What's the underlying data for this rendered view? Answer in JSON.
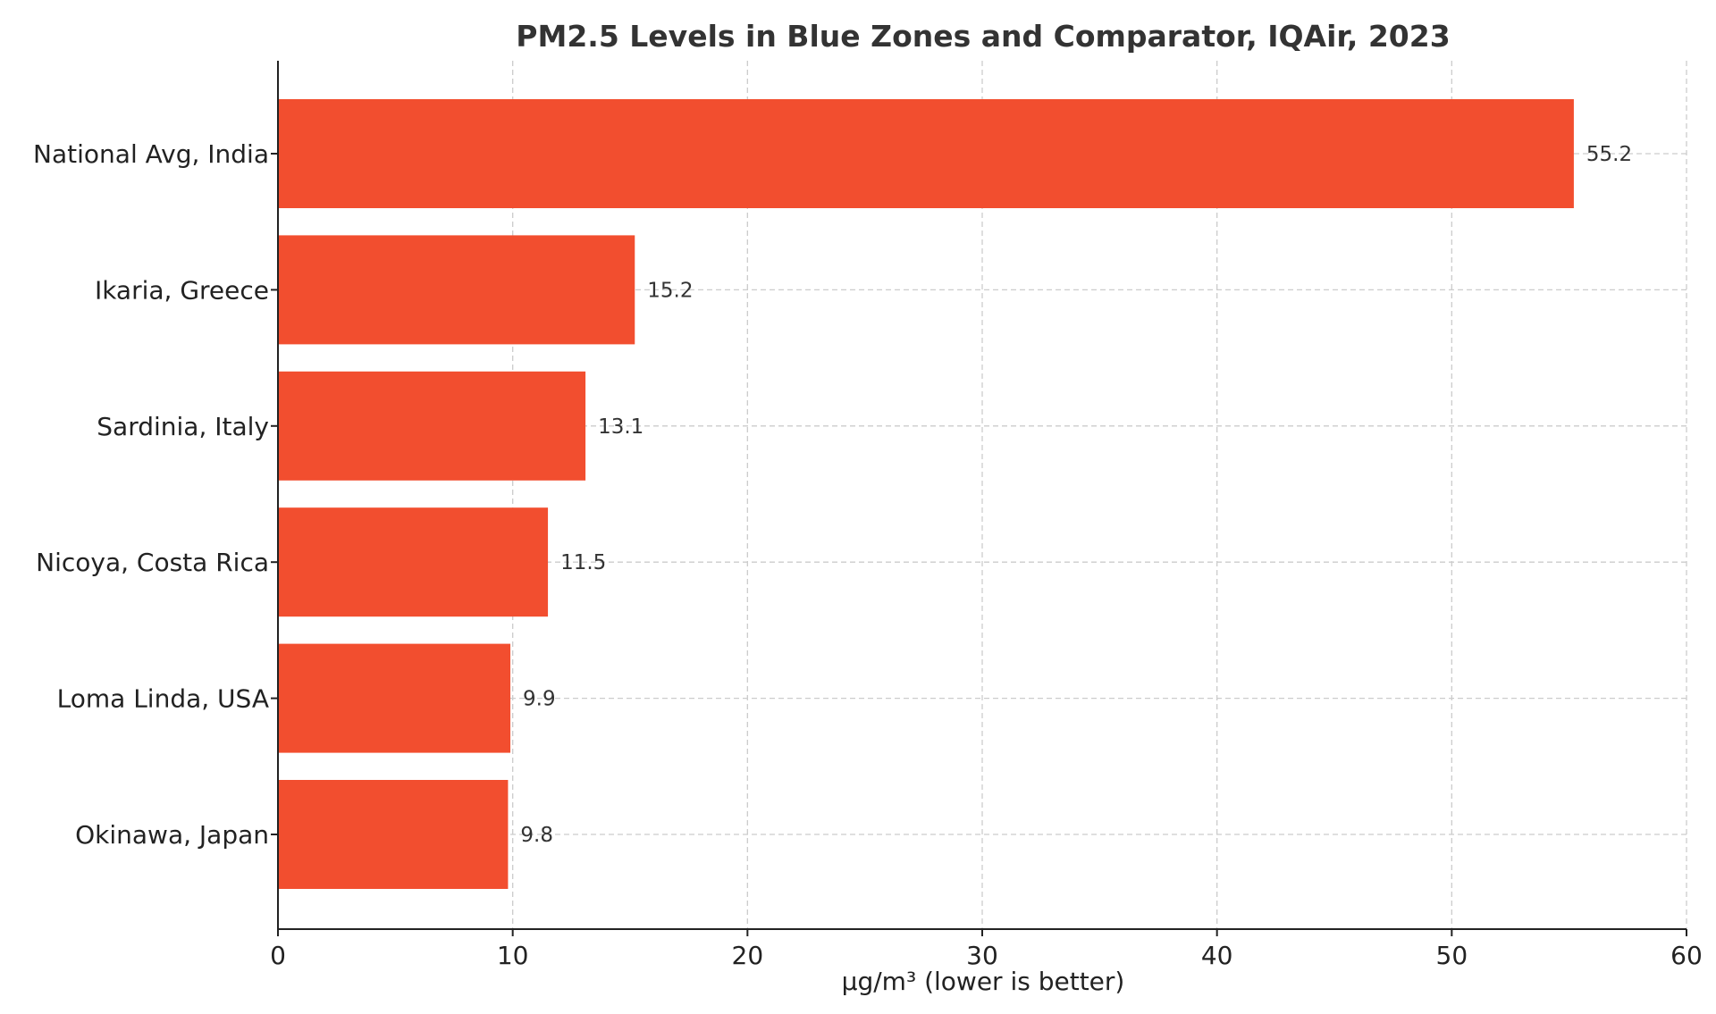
{
  "chart_data": {
    "type": "bar",
    "orientation": "horizontal",
    "title": "PM2.5 Levels in Blue Zones and Comparator, IQAir, 2023",
    "xlabel": "µg/m³ (lower is better)",
    "ylabel": "",
    "categories": [
      "National Avg, India",
      "Ikaria, Greece",
      "Sardinia, Italy",
      "Nicoya, Costa Rica",
      "Loma Linda, USA",
      "Okinawa, Japan"
    ],
    "values": [
      55.2,
      15.2,
      13.1,
      11.5,
      9.9,
      9.8
    ],
    "value_labels": [
      "55.2",
      "15.2",
      "13.1",
      "11.5",
      "9.9",
      "9.8"
    ],
    "xlim": [
      0,
      60
    ],
    "xticks": [
      0,
      10,
      20,
      30,
      40,
      50,
      60
    ],
    "xtick_labels": [
      "0",
      "10",
      "20",
      "30",
      "40",
      "50",
      "60"
    ],
    "grid": true,
    "bar_color": "#f24e2f",
    "text_color": "#333333"
  }
}
